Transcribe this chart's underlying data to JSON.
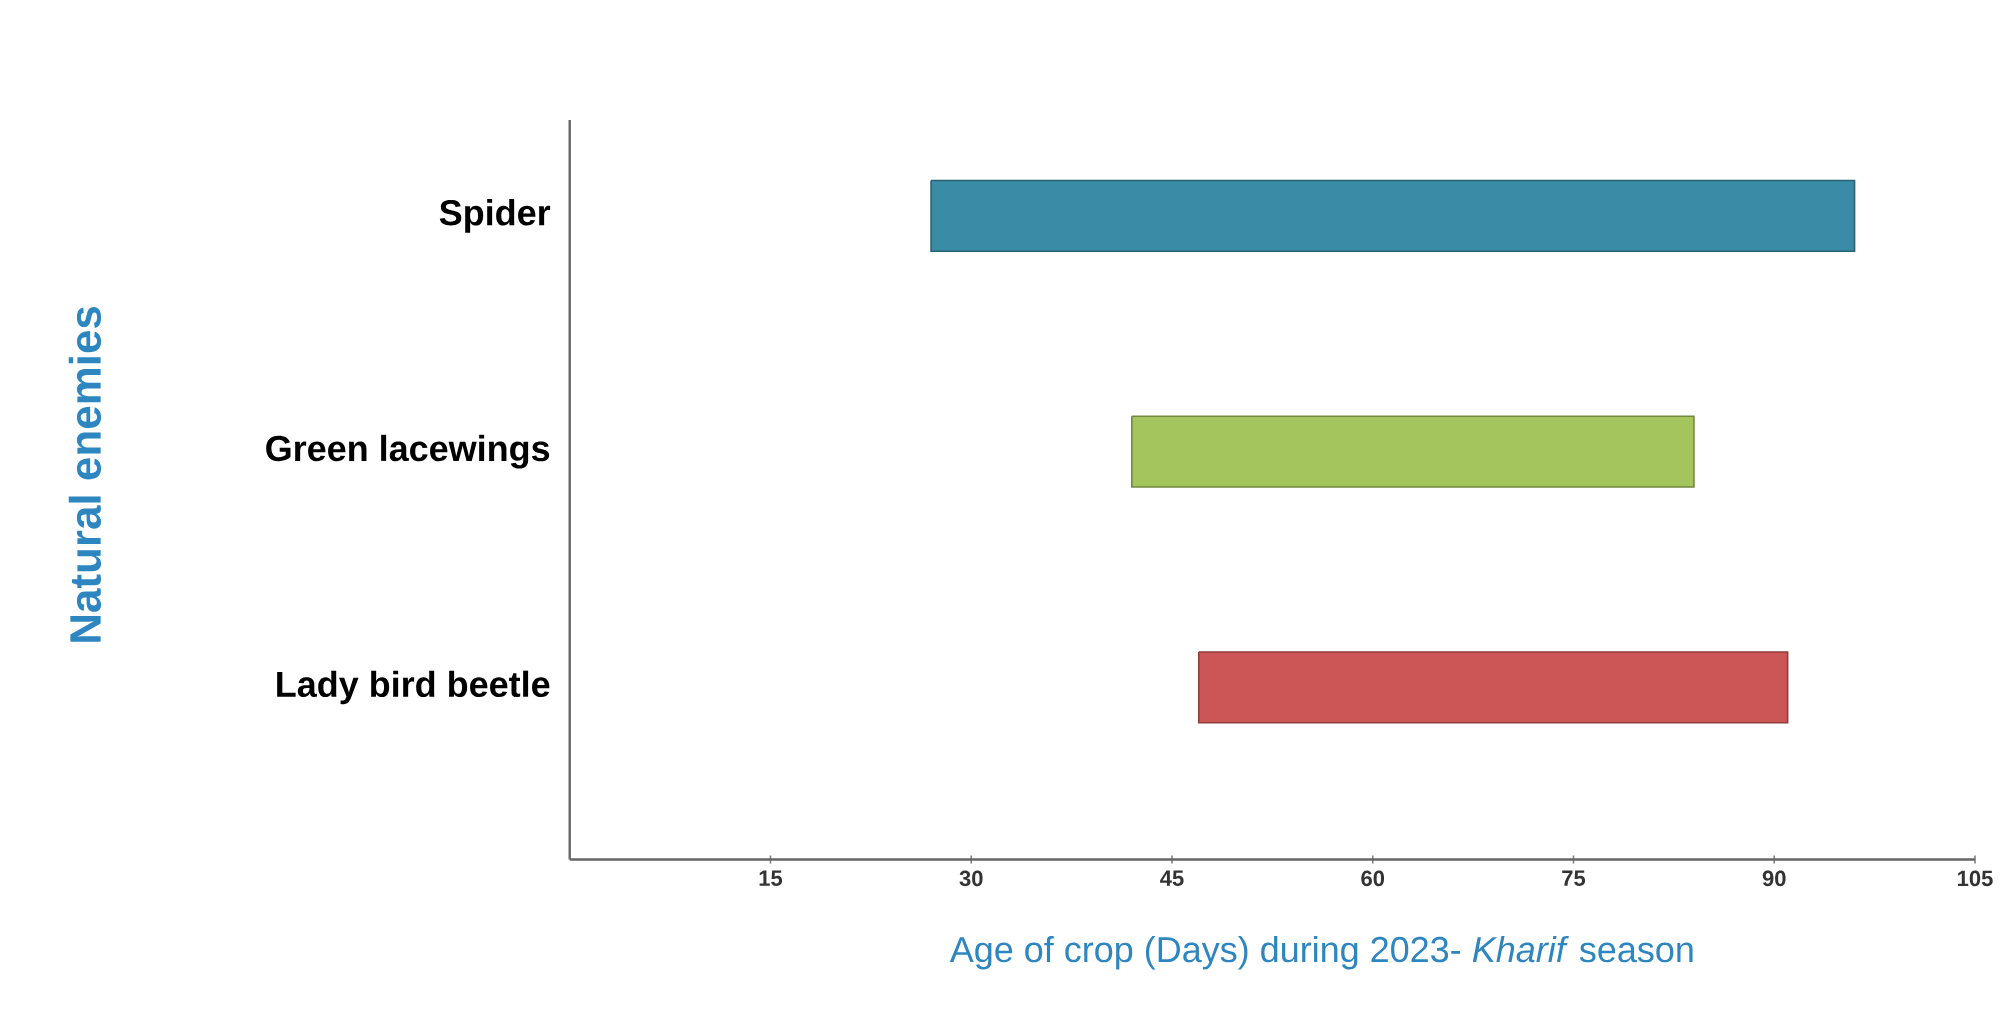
{
  "chart_data": {
    "type": "bar",
    "orientation": "horizontal",
    "categories": [
      "Spider",
      "Green lacewings",
      "Lady bird beetle"
    ],
    "base": [
      27,
      42,
      47
    ],
    "values": [
      69,
      42,
      44
    ],
    "colors": [
      "#3a8ca6",
      "#a4c45e",
      "#cc5656"
    ],
    "xlim": [
      0,
      105
    ],
    "xticks": [
      15,
      30,
      45,
      60,
      75,
      90,
      105
    ],
    "xlabel": "Age of crop (Days) during 2023- *Kharif* season",
    "ylabel": "Natural enemies",
    "grid": false
  }
}
